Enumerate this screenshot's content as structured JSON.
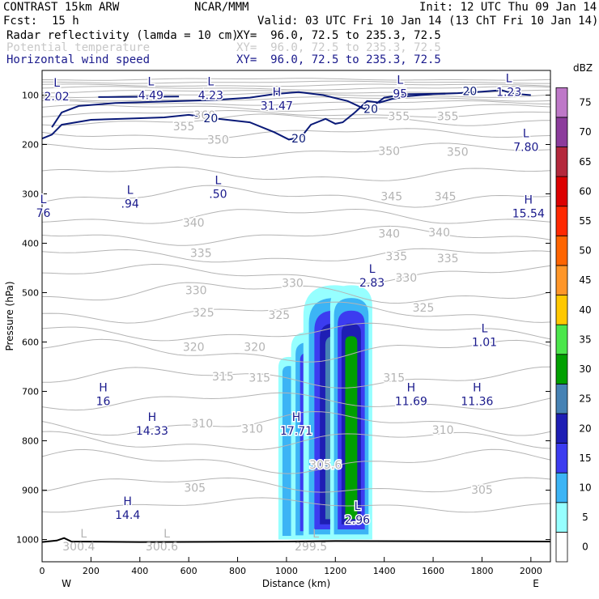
{
  "header": {
    "model": "CONTRAST 15km ARW",
    "org": "NCAR/MMM",
    "init": "Init: 12 UTC Thu 09 Jan 14",
    "fcst_label": "Fcst:",
    "fcst_value": "15 h",
    "valid": "Valid: 03 UTC Fri 10 Jan 14 (13 ChT Fri 10 Jan 14)",
    "field1": "Radar reflectivity (lamda = 10 cm)",
    "field1_xy": "XY=  96.0, 72.5 to 235.3, 72.5",
    "field2": "Potential temperature",
    "field2_xy": "XY=  96.0, 72.5 to 235.3, 72.5",
    "field3": "Horizontal wind speed",
    "field3_xy": "XY=  96.0, 72.5 to 235.3, 72.5"
  },
  "chart_data": {
    "type": "cross-section",
    "xlabel": "Distance (km)",
    "ylabel": "Pressure (hPa)",
    "xlim": [
      0,
      2080
    ],
    "ylim": [
      1045,
      50
    ],
    "x_ticks": [
      0,
      200,
      400,
      600,
      800,
      1000,
      1200,
      1400,
      1600,
      1800,
      2000
    ],
    "y_ticks": [
      100,
      200,
      300,
      400,
      500,
      600,
      700,
      800,
      900,
      1000
    ],
    "x_end_labels": {
      "left": "W",
      "right": "E"
    },
    "colorbar": {
      "unit": "dBZ",
      "levels": [
        0,
        5,
        10,
        15,
        20,
        25,
        30,
        35,
        40,
        45,
        50,
        55,
        60,
        65,
        70,
        75
      ],
      "colors": [
        "#ffffff",
        "#96ffff",
        "#3cb4f5",
        "#3c3cf0",
        "#1e1eb4",
        "#4682b4",
        "#00a000",
        "#4be64b",
        "#ffc800",
        "#ff9628",
        "#ff6400",
        "#ff2800",
        "#dc0000",
        "#b4283c",
        "#8c3c9c",
        "#be78c8"
      ]
    },
    "theta_labels": [
      {
        "text": "360",
        "x": 665,
        "p": 140
      },
      {
        "text": "355",
        "x": 580,
        "p": 163
      },
      {
        "text": "355",
        "x": 1660,
        "p": 143
      },
      {
        "text": "355",
        "x": 1460,
        "p": 143
      },
      {
        "text": "350",
        "x": 720,
        "p": 190
      },
      {
        "text": "350",
        "x": 1420,
        "p": 213
      },
      {
        "text": "350",
        "x": 1700,
        "p": 215
      },
      {
        "text": "345",
        "x": 1430,
        "p": 305
      },
      {
        "text": "345",
        "x": 1650,
        "p": 305
      },
      {
        "text": "340",
        "x": 620,
        "p": 358
      },
      {
        "text": "340",
        "x": 1420,
        "p": 380
      },
      {
        "text": "340",
        "x": 1625,
        "p": 378
      },
      {
        "text": "335",
        "x": 650,
        "p": 420
      },
      {
        "text": "335",
        "x": 1450,
        "p": 426
      },
      {
        "text": "335",
        "x": 1660,
        "p": 430
      },
      {
        "text": "330",
        "x": 630,
        "p": 495
      },
      {
        "text": "330",
        "x": 1025,
        "p": 480
      },
      {
        "text": "330",
        "x": 1490,
        "p": 470
      },
      {
        "text": "325",
        "x": 660,
        "p": 540
      },
      {
        "text": "325",
        "x": 970,
        "p": 545
      },
      {
        "text": "325",
        "x": 1560,
        "p": 530
      },
      {
        "text": "320",
        "x": 620,
        "p": 610
      },
      {
        "text": "320",
        "x": 870,
        "p": 610
      },
      {
        "text": "315",
        "x": 740,
        "p": 670
      },
      {
        "text": "315",
        "x": 890,
        "p": 672
      },
      {
        "text": "315",
        "x": 1440,
        "p": 672
      },
      {
        "text": "310",
        "x": 655,
        "p": 765
      },
      {
        "text": "310",
        "x": 860,
        "p": 775
      },
      {
        "text": "310",
        "x": 1640,
        "p": 778
      },
      {
        "text": "305",
        "x": 625,
        "p": 895
      },
      {
        "text": "305.6",
        "x": 1160,
        "p": 848
      },
      {
        "text": "305",
        "x": 1800,
        "p": 899
      }
    ],
    "theta_extrema": [
      {
        "text": "L",
        "value": "300.4",
        "x": 170,
        "p": 1002
      },
      {
        "text": "L",
        "value": "300.6",
        "x": 510,
        "p": 1002
      },
      {
        "text": "L",
        "value": "299.5",
        "x": 1120,
        "p": 1002
      }
    ],
    "wind_labels": [
      {
        "text": "20",
        "x": 690,
        "p": 147
      },
      {
        "text": "20",
        "x": 1050,
        "p": 188
      },
      {
        "text": "20",
        "x": 1345,
        "p": 128
      },
      {
        "text": "20",
        "x": 1750,
        "p": 92
      }
    ],
    "wind_extrema": [
      {
        "type": "L",
        "value": "2.02",
        "x": 60,
        "p": 83
      },
      {
        "type": "L",
        "value": "4.49",
        "x": 445,
        "p": 80
      },
      {
        "type": "L",
        "value": "4.23",
        "x": 690,
        "p": 80
      },
      {
        "type": "H",
        "value": "31.47",
        "x": 960,
        "p": 102
      },
      {
        "type": "L",
        "value": "95",
        "x": 1465,
        "p": 77
      },
      {
        "type": "L",
        "value": "1.23",
        "x": 1910,
        "p": 74
      },
      {
        "type": "L",
        "value": "7.80",
        "x": 1980,
        "p": 185
      },
      {
        "type": "L",
        "value": ".50",
        "x": 720,
        "p": 280
      },
      {
        "type": "L",
        "value": ".94",
        "x": 360,
        "p": 300
      },
      {
        "type": "L",
        "value": "76",
        "x": 5,
        "p": 319
      },
      {
        "type": "H",
        "value": "15.54",
        "x": 1990,
        "p": 320
      },
      {
        "type": "L",
        "value": "2.83",
        "x": 1350,
        "p": 460
      },
      {
        "type": "L",
        "value": "1.01",
        "x": 1810,
        "p": 580
      },
      {
        "type": "H",
        "value": "16",
        "x": 250,
        "p": 700
      },
      {
        "type": "H",
        "value": "11.69",
        "x": 1510,
        "p": 700
      },
      {
        "type": "H",
        "value": "11.36",
        "x": 1780,
        "p": 700
      },
      {
        "type": "H",
        "value": "14.33",
        "x": 450,
        "p": 760
      },
      {
        "type": "H",
        "value": "17.71",
        "x": 1040,
        "p": 760
      },
      {
        "type": "H",
        "value": "14.4",
        "x": 350,
        "p": 930
      },
      {
        "type": "L",
        "value": "2.96",
        "x": 1290,
        "p": 940
      }
    ],
    "reflectivity_cells": [
      {
        "x": 1010,
        "top": 630,
        "bottom": 1000,
        "halfwidth": 13,
        "levels": [
          5,
          10
        ]
      },
      {
        "x": 1085,
        "top": 580,
        "bottom": 1000,
        "halfwidth": 20,
        "levels": [
          5,
          10,
          15
        ]
      },
      {
        "x": 1195,
        "top": 485,
        "bottom": 1000,
        "halfwidth": 38,
        "levels": [
          5,
          10,
          15,
          20,
          25
        ]
      },
      {
        "x": 1265,
        "top": 485,
        "bottom": 1000,
        "halfwidth": 26,
        "levels": [
          5,
          10,
          15,
          20,
          30
        ]
      }
    ]
  }
}
